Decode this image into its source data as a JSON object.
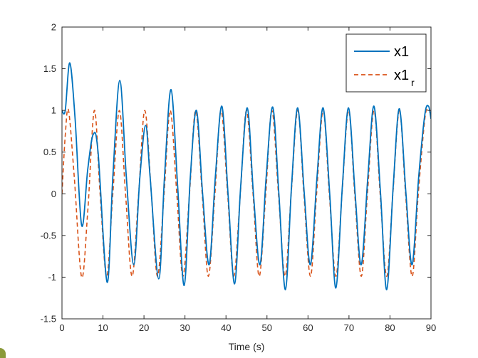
{
  "chart_data": {
    "type": "line",
    "title": "",
    "xlabel": "Time (s)",
    "ylabel": "",
    "xlim": [
      0,
      90
    ],
    "ylim": [
      -1.5,
      2
    ],
    "xticks": [
      0,
      10,
      20,
      30,
      40,
      50,
      60,
      70,
      80,
      90
    ],
    "yticks": [
      -1.5,
      -1,
      -0.5,
      0,
      0.5,
      1,
      1.5,
      2
    ],
    "xtick_labels": [
      "0",
      "10",
      "20",
      "30",
      "40",
      "50",
      "60",
      "70",
      "80",
      "90"
    ],
    "ytick_labels": [
      "-1.5",
      "-1",
      "-0.5",
      "0",
      "0.5",
      "1",
      "1.5",
      "2"
    ],
    "grid": false,
    "legend_position": "top-right",
    "series": [
      {
        "name": "x1",
        "color": "#0072BD",
        "style": "solid",
        "points": [
          [
            0,
            1.0
          ],
          [
            0.8,
            1.0
          ],
          [
            1.9,
            1.57
          ],
          [
            3.2,
            0.9
          ],
          [
            4.8,
            -0.38
          ],
          [
            6.3,
            0.3
          ],
          [
            7.6,
            0.71
          ],
          [
            8.8,
            0.5
          ],
          [
            11.0,
            -1.06
          ],
          [
            12.4,
            0.2
          ],
          [
            14.1,
            1.36
          ],
          [
            15.7,
            0.2
          ],
          [
            17.5,
            -0.85
          ],
          [
            19.0,
            0.2
          ],
          [
            20.4,
            0.82
          ],
          [
            21.5,
            0.2
          ],
          [
            23.6,
            -1.02
          ],
          [
            25.0,
            0.2
          ],
          [
            26.6,
            1.25
          ],
          [
            28.2,
            0.1
          ],
          [
            29.8,
            -1.1
          ],
          [
            31.3,
            0.2
          ],
          [
            32.8,
            1.0
          ],
          [
            34.3,
            0.0
          ],
          [
            35.9,
            -0.85
          ],
          [
            37.4,
            0.2
          ],
          [
            39.0,
            1.05
          ],
          [
            40.5,
            0.0
          ],
          [
            42.1,
            -1.08
          ],
          [
            43.6,
            0.1
          ],
          [
            45.2,
            1.03
          ],
          [
            46.7,
            0.0
          ],
          [
            48.3,
            -0.85
          ],
          [
            49.8,
            0.2
          ],
          [
            51.4,
            1.04
          ],
          [
            52.9,
            0.0
          ],
          [
            54.5,
            -1.15
          ],
          [
            56.0,
            0.1
          ],
          [
            57.5,
            1.03
          ],
          [
            59.1,
            0.0
          ],
          [
            60.6,
            -0.85
          ],
          [
            62.2,
            0.2
          ],
          [
            63.7,
            1.03
          ],
          [
            65.3,
            0.0
          ],
          [
            66.8,
            -1.13
          ],
          [
            68.4,
            0.1
          ],
          [
            69.9,
            1.03
          ],
          [
            71.5,
            0.0
          ],
          [
            73.0,
            -0.85
          ],
          [
            74.6,
            0.2
          ],
          [
            76.1,
            1.05
          ],
          [
            77.7,
            0.0
          ],
          [
            79.2,
            -1.15
          ],
          [
            80.8,
            0.1
          ],
          [
            82.3,
            1.02
          ],
          [
            83.9,
            0.0
          ],
          [
            85.4,
            -0.85
          ],
          [
            87.0,
            0.2
          ],
          [
            88.5,
            0.95
          ],
          [
            89.4,
            1.05
          ],
          [
            90,
            0.9
          ]
        ]
      },
      {
        "name": "x1_r",
        "color": "#D95319",
        "style": "dashed",
        "points": [
          [
            0,
            0.0
          ],
          [
            0.8,
            0.7
          ],
          [
            1.6,
            1.0
          ],
          [
            3.0,
            0.2
          ],
          [
            4.8,
            -1.0
          ],
          [
            6.3,
            -0.2
          ],
          [
            7.9,
            1.0
          ],
          [
            9.3,
            0.0
          ],
          [
            10.9,
            -0.99
          ],
          [
            12.4,
            0.0
          ],
          [
            14.0,
            1.0
          ],
          [
            15.5,
            0.0
          ],
          [
            17.1,
            -0.99
          ],
          [
            18.7,
            0.0
          ],
          [
            20.2,
            1.0
          ],
          [
            21.8,
            0.0
          ],
          [
            23.3,
            -0.99
          ],
          [
            24.9,
            0.0
          ],
          [
            26.4,
            1.0
          ],
          [
            28.0,
            0.0
          ],
          [
            29.5,
            -0.99
          ],
          [
            31.1,
            0.0
          ],
          [
            32.6,
            1.0
          ],
          [
            34.2,
            0.0
          ],
          [
            35.7,
            -0.99
          ],
          [
            37.3,
            0.0
          ],
          [
            38.8,
            1.0
          ],
          [
            40.4,
            0.0
          ],
          [
            41.9,
            -0.99
          ],
          [
            43.5,
            0.0
          ],
          [
            45.0,
            1.0
          ],
          [
            46.6,
            0.0
          ],
          [
            48.1,
            -0.99
          ],
          [
            49.7,
            0.0
          ],
          [
            51.2,
            1.0
          ],
          [
            52.8,
            0.0
          ],
          [
            54.4,
            -0.99
          ],
          [
            55.9,
            0.0
          ],
          [
            57.5,
            1.0
          ],
          [
            59.0,
            0.0
          ],
          [
            60.6,
            -0.99
          ],
          [
            62.1,
            0.0
          ],
          [
            63.7,
            1.0
          ],
          [
            65.2,
            0.0
          ],
          [
            66.8,
            -0.99
          ],
          [
            68.3,
            0.0
          ],
          [
            69.9,
            1.0
          ],
          [
            71.4,
            0.0
          ],
          [
            73.0,
            -0.99
          ],
          [
            74.5,
            0.0
          ],
          [
            76.1,
            1.0
          ],
          [
            77.6,
            0.0
          ],
          [
            79.2,
            -0.99
          ],
          [
            80.7,
            0.0
          ],
          [
            82.3,
            1.0
          ],
          [
            83.8,
            0.0
          ],
          [
            85.4,
            -0.99
          ],
          [
            86.9,
            0.0
          ],
          [
            88.5,
            0.9
          ],
          [
            89.3,
            1.0
          ],
          [
            90,
            0.95
          ]
        ]
      }
    ]
  },
  "legend": {
    "entries": [
      {
        "main": "x1",
        "sub": ""
      },
      {
        "main": "x1",
        "sub": "r"
      }
    ]
  }
}
